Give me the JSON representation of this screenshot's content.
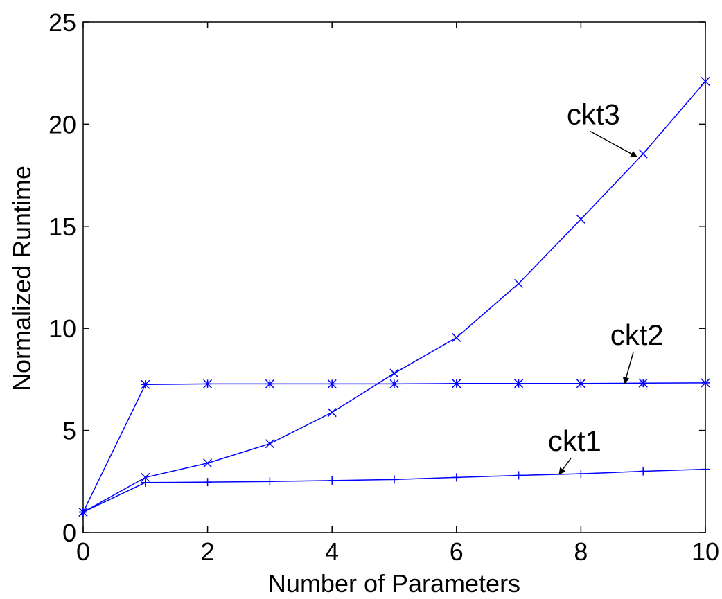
{
  "chart_data": {
    "type": "line",
    "title": "",
    "xlabel": "Number of Parameters",
    "ylabel": "Normalized Runtime",
    "xlim": [
      0,
      10
    ],
    "ylim": [
      0,
      25
    ],
    "xticks": [
      0,
      2,
      4,
      6,
      8,
      10
    ],
    "yticks": [
      0,
      5,
      10,
      15,
      20,
      25
    ],
    "grid": false,
    "legend": "none",
    "x": [
      0,
      1,
      2,
      3,
      4,
      5,
      6,
      7,
      8,
      9,
      10
    ],
    "series": [
      {
        "marker": "plus",
        "color": "#0000ff",
        "values": [
          1.0,
          2.45,
          2.47,
          2.5,
          2.55,
          2.6,
          2.7,
          2.8,
          2.88,
          3.0,
          3.1
        ]
      },
      {
        "marker": "star",
        "color": "#0000ff",
        "values": [
          1.0,
          7.25,
          7.28,
          7.28,
          7.28,
          7.28,
          7.3,
          7.3,
          7.3,
          7.32,
          7.33
        ]
      },
      {
        "marker": "x",
        "color": "#0000ff",
        "values": [
          1.0,
          2.7,
          3.4,
          4.35,
          5.88,
          7.8,
          9.55,
          12.2,
          15.35,
          18.55,
          22.1
        ]
      }
    ],
    "annotations": [
      {
        "text": "ckt1",
        "label_x": 7.9,
        "label_y": 4.0,
        "arrow_to_x": 7.65,
        "arrow_to_y": 2.85
      },
      {
        "text": "ckt2",
        "label_x": 8.9,
        "label_y": 9.2,
        "arrow_to_x": 8.7,
        "arrow_to_y": 7.3
      },
      {
        "text": "ckt3",
        "label_x": 8.2,
        "label_y": 20.0,
        "arrow_to_x": 8.9,
        "arrow_to_y": 18.4
      }
    ]
  }
}
